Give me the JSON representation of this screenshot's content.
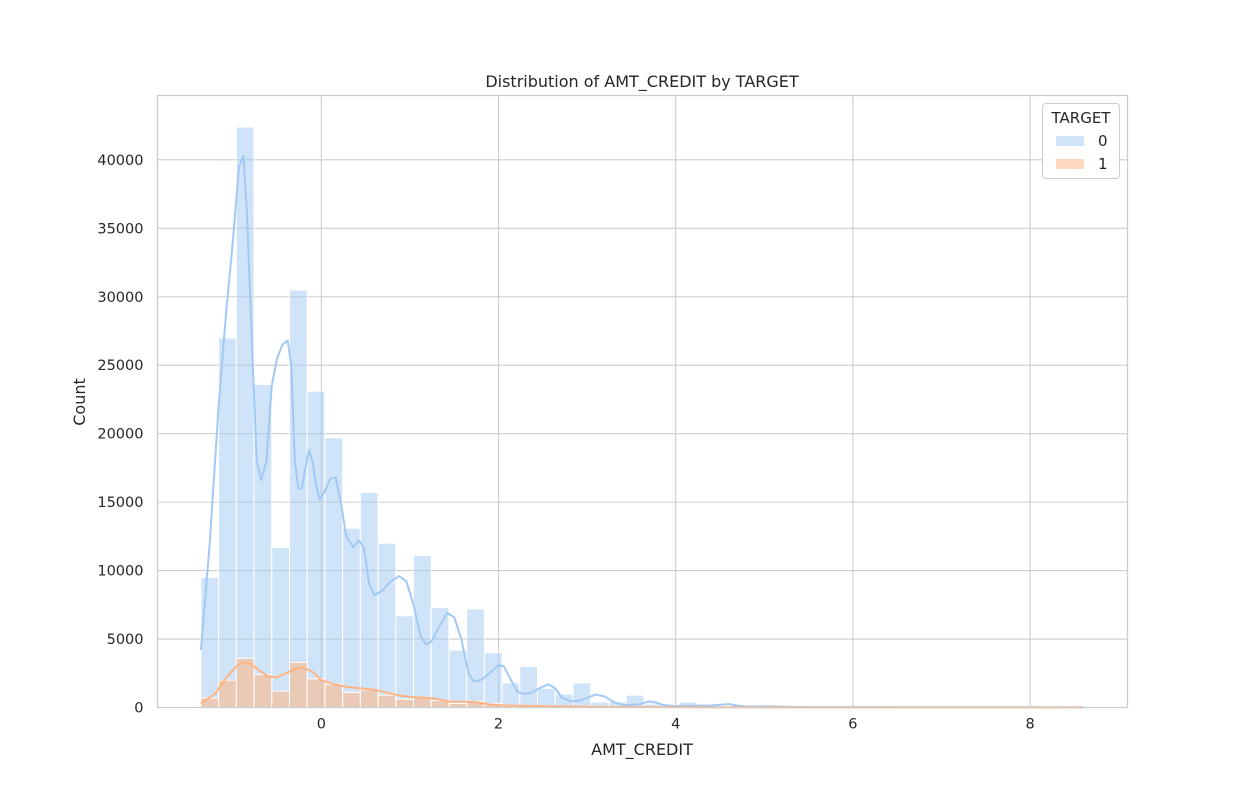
{
  "chart_data": {
    "type": "bar",
    "title": "Distribution of AMT_CREDIT by TARGET",
    "xlabel": "AMT_CREDIT",
    "ylabel": "Count",
    "xlim": [
      -1.85,
      9.1
    ],
    "ylim": [
      0,
      44700
    ],
    "x_ticks": [
      0,
      2,
      4,
      6,
      8
    ],
    "y_ticks": [
      0,
      5000,
      10000,
      15000,
      20000,
      25000,
      30000,
      35000,
      40000
    ],
    "grid": true,
    "legend": {
      "title": "TARGET",
      "placement": "top-right"
    },
    "bin_edges": [
      -1.36,
      -1.16,
      -0.96,
      -0.76,
      -0.56,
      -0.36,
      -0.16,
      0.04,
      0.24,
      0.44,
      0.64,
      0.84,
      1.04,
      1.24,
      1.44,
      1.64,
      1.84,
      2.04,
      2.24,
      2.44,
      2.64,
      2.84,
      3.04,
      3.24,
      3.44,
      3.64,
      3.84,
      4.04,
      4.24,
      4.44,
      4.64,
      4.84,
      5.04,
      5.24,
      5.44,
      5.64,
      5.84,
      6.04,
      6.24,
      6.44,
      6.64,
      6.84,
      7.04,
      7.24,
      7.44,
      7.64,
      7.84,
      8.04,
      8.24,
      8.44,
      8.64
    ],
    "series": [
      {
        "name": "0",
        "color": "#a1c9f4",
        "values": [
          9500,
          27000,
          42400,
          23600,
          11700,
          30500,
          23100,
          19700,
          13100,
          15700,
          12000,
          6700,
          11100,
          7300,
          4200,
          7200,
          4000,
          1800,
          3000,
          1400,
          1000,
          1800,
          400,
          400,
          900,
          250,
          150,
          400,
          120,
          100,
          150,
          200,
          60,
          80,
          40,
          60,
          30,
          30,
          20,
          20,
          20,
          20,
          20,
          20,
          15,
          15,
          15,
          15,
          15,
          15
        ],
        "kde": [
          [
            -1.36,
            4200
          ],
          [
            -1.26,
            12000
          ],
          [
            -1.16,
            22000
          ],
          [
            -1.08,
            28500
          ],
          [
            -1.0,
            34000
          ],
          [
            -0.93,
            39500
          ],
          [
            -0.88,
            40300
          ],
          [
            -0.84,
            36000
          ],
          [
            -0.78,
            26000
          ],
          [
            -0.73,
            18000
          ],
          [
            -0.68,
            16600
          ],
          [
            -0.62,
            18000
          ],
          [
            -0.56,
            23500
          ],
          [
            -0.5,
            25500
          ],
          [
            -0.44,
            26500
          ],
          [
            -0.38,
            26800
          ],
          [
            -0.34,
            25000
          ],
          [
            -0.3,
            18000
          ],
          [
            -0.26,
            16000
          ],
          [
            -0.22,
            16000
          ],
          [
            -0.18,
            17500
          ],
          [
            -0.14,
            18800
          ],
          [
            -0.1,
            18000
          ],
          [
            -0.06,
            16200
          ],
          [
            -0.02,
            15200
          ],
          [
            0.04,
            15800
          ],
          [
            0.1,
            16700
          ],
          [
            0.16,
            16800
          ],
          [
            0.22,
            15000
          ],
          [
            0.28,
            12500
          ],
          [
            0.36,
            11700
          ],
          [
            0.42,
            12200
          ],
          [
            0.48,
            11700
          ],
          [
            0.54,
            9000
          ],
          [
            0.6,
            8200
          ],
          [
            0.68,
            8500
          ],
          [
            0.78,
            9200
          ],
          [
            0.88,
            9600
          ],
          [
            0.96,
            9200
          ],
          [
            1.04,
            7500
          ],
          [
            1.12,
            5200
          ],
          [
            1.18,
            4600
          ],
          [
            1.24,
            4800
          ],
          [
            1.32,
            5800
          ],
          [
            1.42,
            6900
          ],
          [
            1.5,
            6600
          ],
          [
            1.58,
            5000
          ],
          [
            1.66,
            2500
          ],
          [
            1.72,
            1900
          ],
          [
            1.8,
            2000
          ],
          [
            1.9,
            2500
          ],
          [
            2.0,
            3100
          ],
          [
            2.06,
            3000
          ],
          [
            2.14,
            2000
          ],
          [
            2.22,
            1100
          ],
          [
            2.3,
            1000
          ],
          [
            2.38,
            1100
          ],
          [
            2.46,
            1400
          ],
          [
            2.56,
            1700
          ],
          [
            2.64,
            1400
          ],
          [
            2.72,
            700
          ],
          [
            2.82,
            450
          ],
          [
            2.92,
            500
          ],
          [
            3.0,
            700
          ],
          [
            3.1,
            950
          ],
          [
            3.2,
            800
          ],
          [
            3.3,
            400
          ],
          [
            3.4,
            200
          ],
          [
            3.5,
            180
          ],
          [
            3.6,
            250
          ],
          [
            3.7,
            450
          ],
          [
            3.78,
            350
          ],
          [
            3.86,
            180
          ],
          [
            4.0,
            100
          ],
          [
            4.2,
            130
          ],
          [
            4.4,
            150
          ],
          [
            4.6,
            250
          ],
          [
            4.72,
            120
          ],
          [
            4.86,
            50
          ],
          [
            5.1,
            80
          ],
          [
            5.3,
            40
          ],
          [
            5.6,
            30
          ],
          [
            6.0,
            25
          ],
          [
            6.5,
            20
          ],
          [
            7.0,
            20
          ],
          [
            7.5,
            15
          ],
          [
            8.0,
            15
          ],
          [
            8.6,
            10
          ]
        ]
      },
      {
        "name": "1",
        "color": "#ffb482",
        "values": [
          700,
          2000,
          3600,
          2400,
          1200,
          3300,
          2100,
          1700,
          1100,
          1300,
          900,
          600,
          750,
          500,
          300,
          450,
          280,
          100,
          150,
          80,
          50,
          100,
          30,
          20,
          40,
          15,
          10,
          15,
          5,
          5,
          5,
          5,
          5,
          5,
          3,
          3,
          3,
          3,
          3,
          3,
          3,
          3,
          3,
          3,
          3,
          3,
          3,
          3,
          3,
          3
        ],
        "kde": [
          [
            -1.36,
            300
          ],
          [
            -1.2,
            1000
          ],
          [
            -1.06,
            2300
          ],
          [
            -0.96,
            3000
          ],
          [
            -0.88,
            3300
          ],
          [
            -0.8,
            3200
          ],
          [
            -0.7,
            2700
          ],
          [
            -0.6,
            2250
          ],
          [
            -0.5,
            2200
          ],
          [
            -0.4,
            2500
          ],
          [
            -0.3,
            2800
          ],
          [
            -0.2,
            2900
          ],
          [
            -0.1,
            2600
          ],
          [
            0.0,
            2000
          ],
          [
            0.14,
            1700
          ],
          [
            0.3,
            1500
          ],
          [
            0.44,
            1400
          ],
          [
            0.6,
            1300
          ],
          [
            0.76,
            1050
          ],
          [
            0.9,
            850
          ],
          [
            1.04,
            750
          ],
          [
            1.18,
            720
          ],
          [
            1.32,
            600
          ],
          [
            1.46,
            420
          ],
          [
            1.6,
            420
          ],
          [
            1.74,
            400
          ],
          [
            1.9,
            230
          ],
          [
            2.06,
            150
          ],
          [
            2.3,
            120
          ],
          [
            2.6,
            90
          ],
          [
            2.9,
            60
          ],
          [
            3.3,
            40
          ],
          [
            3.8,
            25
          ],
          [
            4.3,
            15
          ],
          [
            5.0,
            10
          ],
          [
            6.0,
            5
          ],
          [
            7.0,
            5
          ],
          [
            8.6,
            5
          ]
        ]
      }
    ]
  }
}
